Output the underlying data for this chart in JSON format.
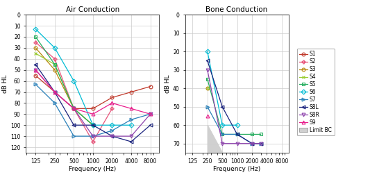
{
  "title_ac": "Air Conduction",
  "title_bc": "Bone Conduction",
  "xlabel": "Frequency (Hz)",
  "ylabel": "dB HL",
  "freqs_ac": [
    125,
    250,
    500,
    1000,
    2000,
    4000,
    8000
  ],
  "freqs_bc": [
    250,
    500,
    1000,
    2000,
    3000
  ],
  "ylim_ac": [
    0,
    125
  ],
  "ylim_bc": [
    0,
    75
  ],
  "yticks_ac": [
    0,
    10,
    20,
    30,
    40,
    50,
    60,
    70,
    80,
    90,
    100,
    110,
    120
  ],
  "yticks_bc": [
    0,
    10,
    20,
    30,
    40,
    50,
    60,
    70
  ],
  "ac_data": {
    "S1": [
      55,
      null,
      85,
      85,
      75,
      70,
      65
    ],
    "S2": [
      25,
      40,
      85,
      115,
      85,
      null,
      null
    ],
    "S3": [
      30,
      50,
      85,
      100,
      null,
      null,
      null
    ],
    "S4": [
      35,
      45,
      85,
      100,
      null,
      null,
      null
    ],
    "S5": [
      20,
      45,
      85,
      100,
      null,
      null,
      null
    ],
    "S6": [
      13,
      30,
      60,
      100,
      100,
      100,
      null
    ],
    "S7": [
      63,
      80,
      110,
      110,
      105,
      95,
      90
    ],
    "S8L": [
      45,
      70,
      100,
      100,
      110,
      115,
      100
    ],
    "S8R": [
      50,
      70,
      85,
      110,
      110,
      110,
      90
    ],
    "S9": [
      50,
      70,
      85,
      90,
      80,
      85,
      90
    ]
  },
  "bc_data": {
    "S1": [
      null,
      null,
      null,
      null,
      null
    ],
    "S2": [
      null,
      null,
      null,
      null,
      null
    ],
    "S3": [
      40,
      null,
      null,
      null,
      null
    ],
    "S4": [
      40,
      null,
      null,
      null,
      null
    ],
    "S5": [
      35,
      65,
      65,
      65,
      65
    ],
    "S6": [
      20,
      60,
      60,
      null,
      null
    ],
    "S7": [
      50,
      65,
      65,
      70,
      70
    ],
    "S8L": [
      25,
      50,
      65,
      70,
      70
    ],
    "S8R": [
      30,
      70,
      70,
      70,
      70
    ],
    "S9": [
      55,
      null,
      null,
      null,
      null
    ]
  },
  "colors": {
    "S1": "#c0392b",
    "S2": "#e8547a",
    "S3": "#b8860b",
    "S4": "#9acd32",
    "S5": "#27ae60",
    "S6": "#00bcd4",
    "S7": "#2980b9",
    "S8L": "#1a237e",
    "S8R": "#8e44ad",
    "S9": "#e91e8c"
  },
  "markers": {
    "S1": "o",
    "S2": "P",
    "S3": "o",
    "S4": "x",
    "S5": "s",
    "S6": "D",
    "S7": ">",
    "S8L": "<",
    "S8R": "v",
    "S9": "^"
  },
  "filled_markers": [
    "o",
    "s",
    "D",
    ">",
    "<",
    "v",
    "^",
    "P"
  ],
  "limit_bc_color": "#d0d0d0",
  "bg_color": "#ffffff",
  "grid_color": "#cccccc"
}
